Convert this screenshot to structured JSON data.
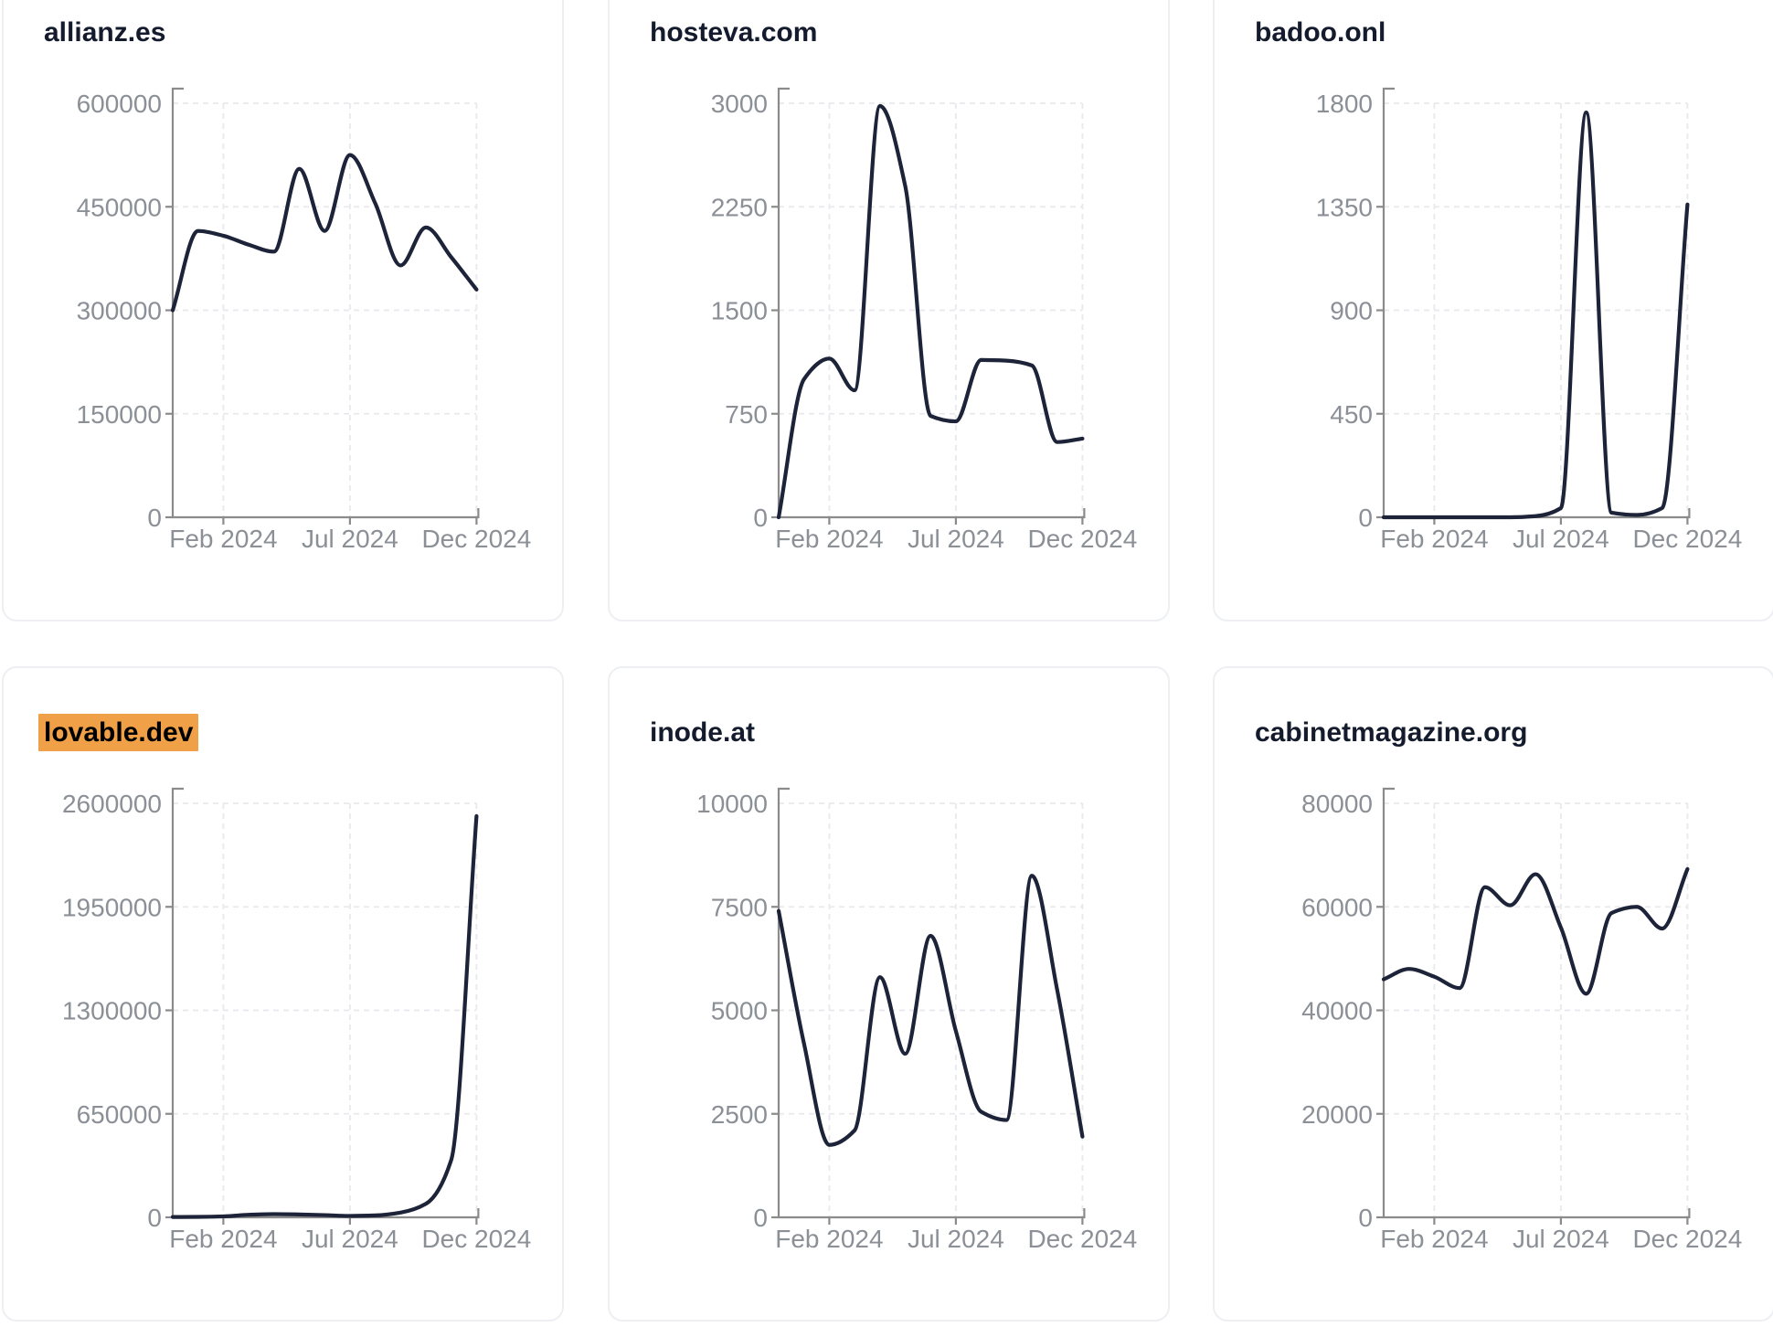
{
  "colors": {
    "line": "#1d2338",
    "axis": "#8b8b8b",
    "grid": "#e7e9ec",
    "tick_text": "#8b8f96",
    "title_text": "#141b2d",
    "card_border": "#edeff2",
    "highlight": "#f0a046"
  },
  "x_axis": {
    "tick_labels": [
      "Feb 2024",
      "Jul 2024",
      "Dec 2024"
    ],
    "tick_month_indices": [
      2,
      7,
      12
    ]
  },
  "months": [
    "Dec 2023",
    "Jan 2024",
    "Feb 2024",
    "Mar 2024",
    "Apr 2024",
    "May 2024",
    "Jun 2024",
    "Jul 2024",
    "Aug 2024",
    "Sep 2024",
    "Oct 2024",
    "Nov 2024",
    "Dec 2024"
  ],
  "chart_data": [
    {
      "type": "line",
      "title": "allianz.es",
      "title_highlighted": false,
      "ylim": [
        0,
        600000
      ],
      "y_ticks": [
        "600000",
        "450000",
        "300000",
        "150000",
        "0"
      ],
      "values": [
        300000,
        415000,
        408000,
        395000,
        385000,
        505000,
        415000,
        525000,
        455000,
        365000,
        420000,
        377000,
        330000
      ]
    },
    {
      "type": "line",
      "title": "hosteva.com",
      "title_highlighted": false,
      "ylim": [
        0,
        3000
      ],
      "y_ticks": [
        "3000",
        "2250",
        "1500",
        "750",
        "0"
      ],
      "values": [
        0,
        1000,
        1150,
        920,
        2980,
        2400,
        735,
        695,
        1140,
        1135,
        1100,
        545,
        570
      ]
    },
    {
      "type": "line",
      "title": "badoo.onl",
      "title_highlighted": false,
      "ylim": [
        0,
        1800
      ],
      "y_ticks": [
        "1800",
        "1350",
        "900",
        "450",
        "0"
      ],
      "values": [
        0,
        0,
        0,
        0,
        0,
        0,
        5,
        40,
        1760,
        20,
        10,
        40,
        1360
      ]
    },
    {
      "type": "line",
      "title": "lovable.dev",
      "title_highlighted": true,
      "ylim": [
        0,
        2600000
      ],
      "y_ticks": [
        "2600000",
        "1950000",
        "1300000",
        "650000",
        "0"
      ],
      "values": [
        2000,
        3000,
        6000,
        16000,
        20000,
        18000,
        14000,
        9000,
        12000,
        30000,
        85000,
        360000,
        2520000
      ]
    },
    {
      "type": "line",
      "title": "inode.at",
      "title_highlighted": false,
      "ylim": [
        0,
        10000
      ],
      "y_ticks": [
        "10000",
        "7500",
        "5000",
        "2500",
        "0"
      ],
      "values": [
        7400,
        4200,
        1750,
        2100,
        5800,
        3950,
        6800,
        4500,
        2550,
        2350,
        8250,
        5500,
        1950
      ]
    },
    {
      "type": "line",
      "title": "cabinetmagazine.org",
      "title_highlighted": false,
      "ylim": [
        0,
        80000
      ],
      "y_ticks": [
        "80000",
        "60000",
        "40000",
        "20000",
        "0"
      ],
      "values": [
        46000,
        48000,
        46500,
        44300,
        63800,
        60300,
        66300,
        56000,
        43200,
        58800,
        60000,
        55800,
        67300
      ]
    }
  ]
}
